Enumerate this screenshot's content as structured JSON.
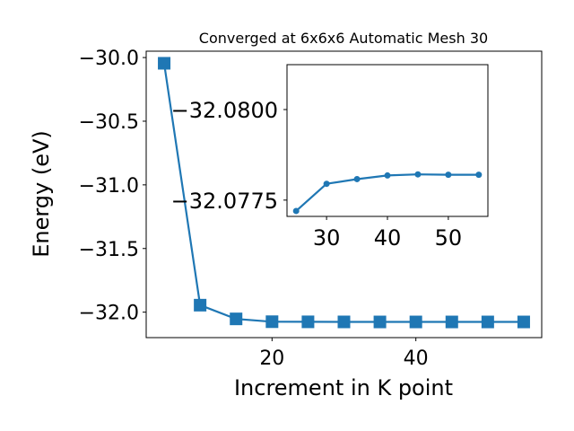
{
  "chart_data": [
    {
      "type": "line",
      "title": "Converged at 6x6x6 Automatic Mesh 30",
      "xlabel": "Increment in K point",
      "ylabel": "Energy (eV)",
      "x": [
        5,
        10,
        15,
        20,
        25,
        30,
        35,
        40,
        45,
        50,
        55
      ],
      "series": [
        {
          "values": [
            -30.045,
            -31.945,
            -32.053,
            -32.075,
            -32.076,
            -32.0765,
            -32.0768,
            -32.0768,
            -32.0768,
            -32.0768,
            -32.0768
          ],
          "color": "#1f77b4",
          "marker": "square"
        }
      ],
      "xticks": [
        20,
        40
      ],
      "xtick_labels": [
        "20",
        "40"
      ],
      "yticks": [
        -30.0,
        -30.5,
        -31.0,
        -31.5,
        -32.0
      ],
      "ytick_labels": [
        "−30.0",
        "−30.5",
        "−31.0",
        "−31.5",
        "−32.0"
      ],
      "xlim": [
        2.5,
        57.5
      ],
      "ylim": [
        -32.2,
        -29.95
      ],
      "grid": false
    },
    {
      "type": "line",
      "title": "",
      "xlabel": "",
      "ylabel": "",
      "x": [
        25,
        30,
        35,
        40,
        45,
        50,
        55
      ],
      "series": [
        {
          "values": [
            -32.0772,
            -32.07795,
            -32.07808,
            -32.07818,
            -32.07821,
            -32.0782,
            -32.0782
          ],
          "color": "#1f77b4",
          "marker": "circle"
        }
      ],
      "xticks": [
        30,
        40,
        50
      ],
      "xtick_labels": [
        "30",
        "40",
        "50"
      ],
      "yticks": [
        -32.0775,
        -32.08
      ],
      "ytick_labels": [
        "−32.0775",
        "−32.0800"
      ],
      "xlim": [
        23.5,
        56.5
      ],
      "ylim": [
        -32.07705,
        -32.08124
      ],
      "grid": false
    }
  ]
}
